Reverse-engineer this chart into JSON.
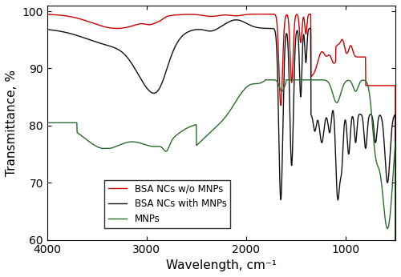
{
  "xlabel": "Wavelength, cm⁻¹",
  "ylabel": "Transmittance, %",
  "xlim": [
    4000,
    500
  ],
  "ylim": [
    60,
    101
  ],
  "yticks": [
    60,
    70,
    80,
    90,
    100
  ],
  "xticks": [
    4000,
    3000,
    2000,
    1000
  ],
  "legend_labels": [
    "BSA NCs w/o MNPs",
    "BSA NCs with MNPs",
    "MNPs"
  ],
  "colors": {
    "red": "#CC0000",
    "black": "#111111",
    "green": "#2D6A2D"
  },
  "linewidth": 1.0,
  "background_color": "#ffffff"
}
